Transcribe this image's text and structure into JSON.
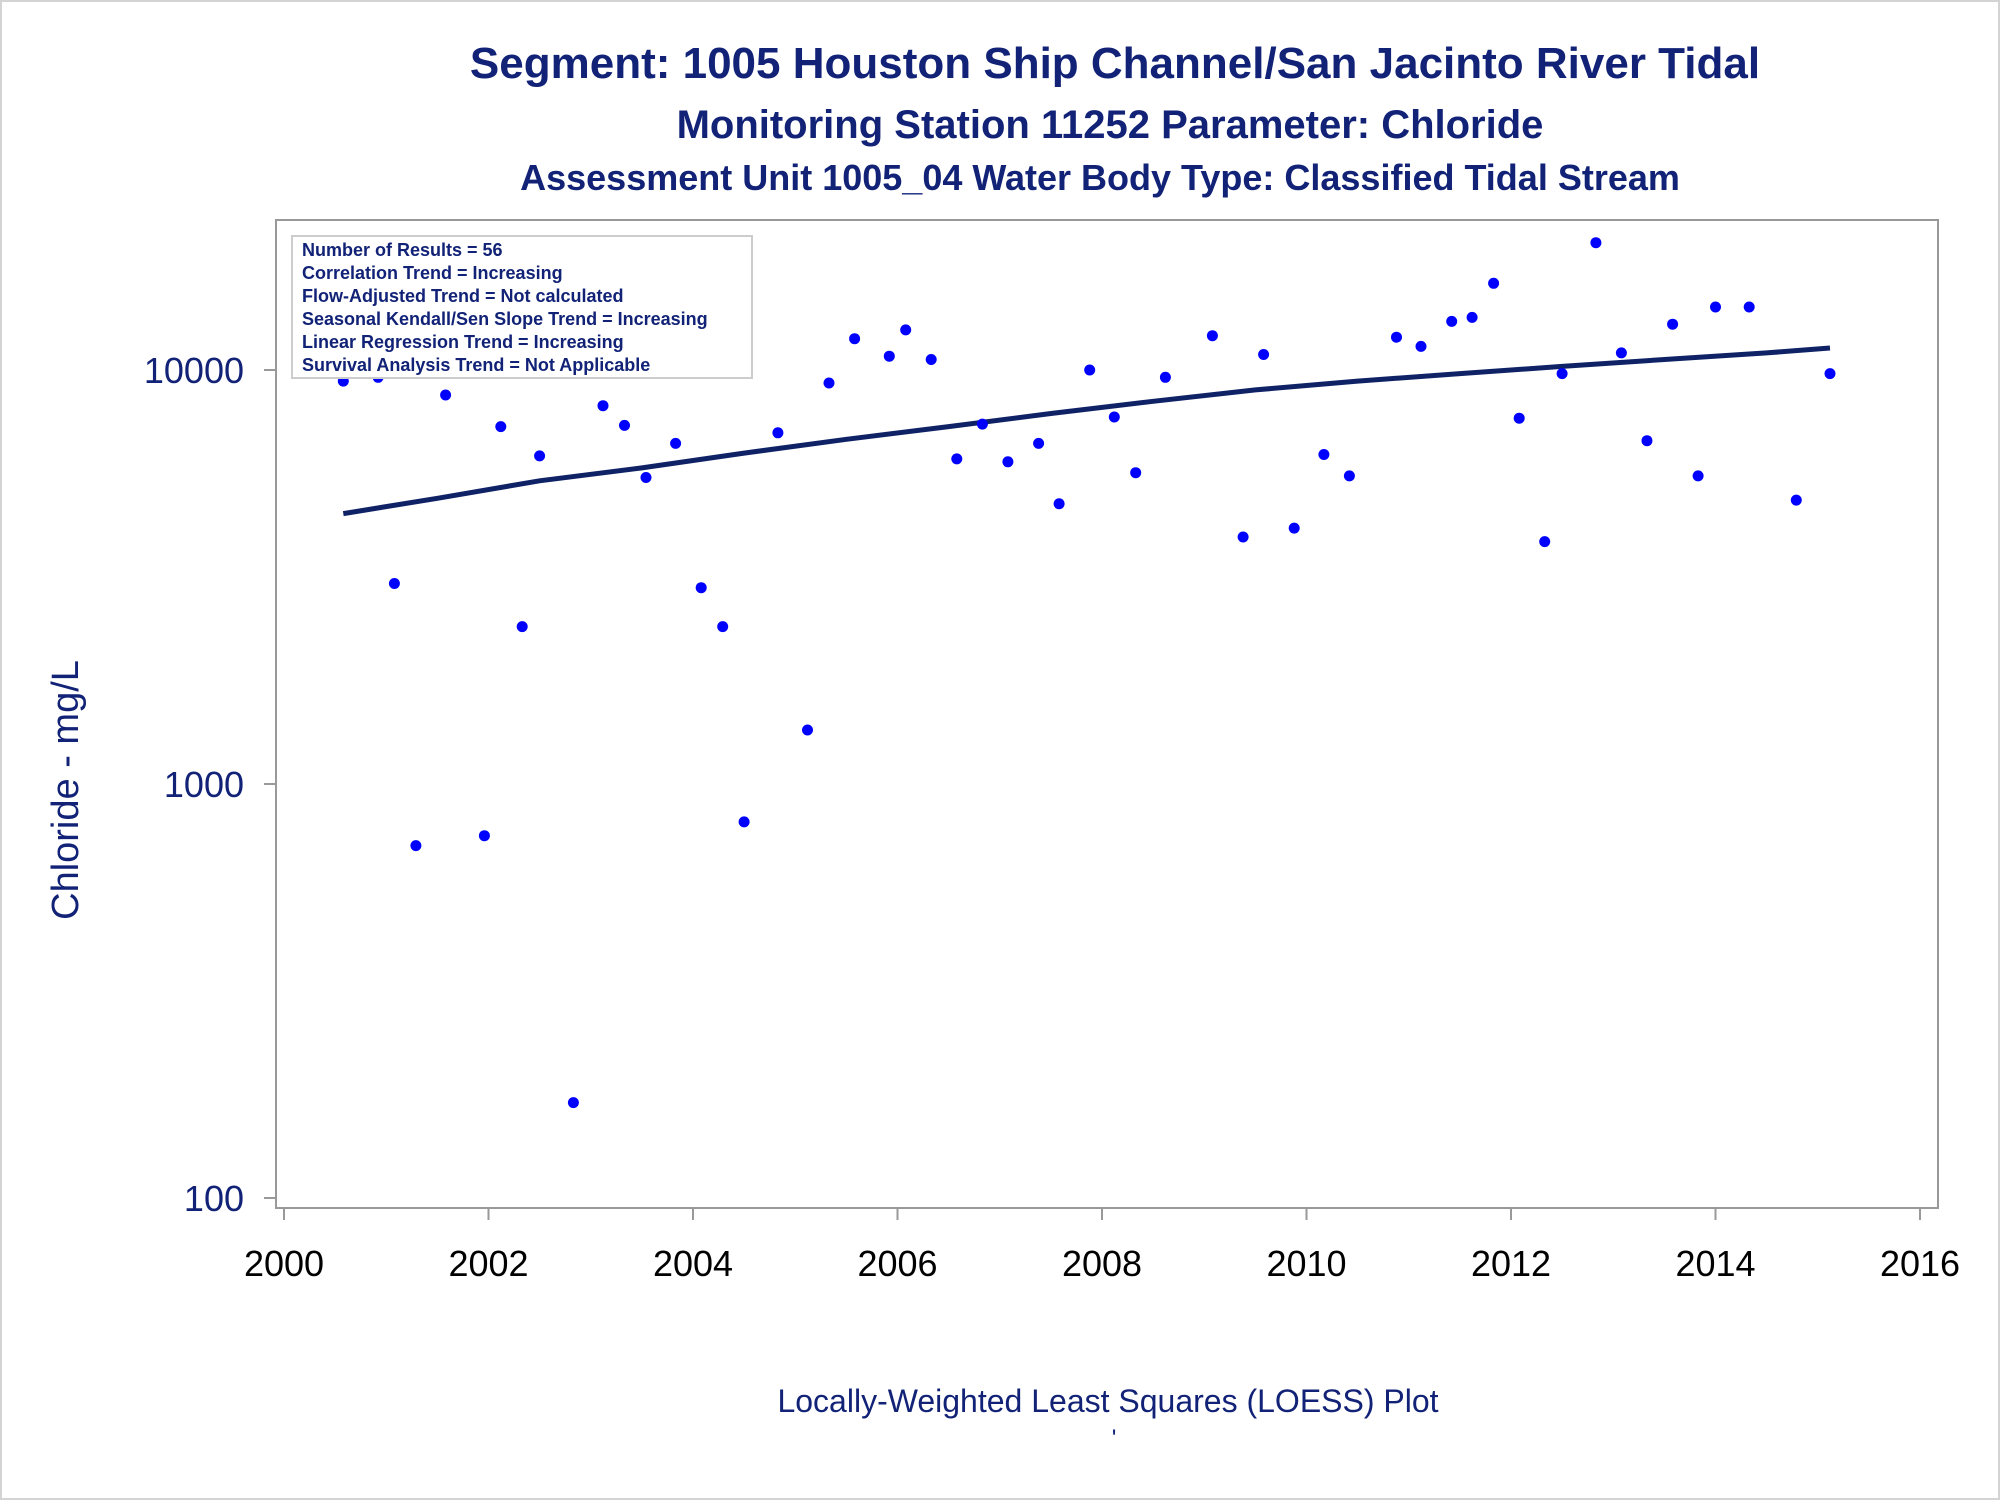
{
  "chart_data": {
    "type": "scatter",
    "title": "Segment: 1005  Houston Ship Channel/San Jacinto River Tidal",
    "subtitle1": "Monitoring Station 11252 Parameter: Chloride",
    "subtitle2": "Assessment Unit 1005_04   Water Body Type: Classified Tidal Stream",
    "xlabel": "Locally-Weighted Least Squares (LOESS) Plot",
    "ylabel": "Chloride - mg/L",
    "footnote": "'",
    "x_scale": "linear",
    "y_scale": "log",
    "xlim": [
      2000,
      2016
    ],
    "ylim": [
      100,
      20000
    ],
    "x_ticks": [
      "2000",
      "2002",
      "2004",
      "2006",
      "2008",
      "2010",
      "2012",
      "2014",
      "2016"
    ],
    "y_ticks": [
      "100",
      "1000",
      "10000"
    ],
    "grid": false,
    "stats_box": {
      "placement": "top-left",
      "lines": [
        "Number of Results = 56",
        "Correlation Trend = Increasing",
        "Flow-Adjusted Trend = Not calculated",
        "Seasonal Kendall/Sen Slope Trend = Increasing",
        "Linear Regression Trend = Increasing",
        "Survival Analysis Trend = Not Applicable"
      ]
    },
    "point_color": "#0000ff",
    "line_color": "#0f2266",
    "points": [
      {
        "x": 2000.58,
        "y": 9400
      },
      {
        "x": 2000.92,
        "y": 9600
      },
      {
        "x": 2001.08,
        "y": 3050
      },
      {
        "x": 2001.29,
        "y": 710
      },
      {
        "x": 2001.58,
        "y": 8700
      },
      {
        "x": 2001.96,
        "y": 750
      },
      {
        "x": 2002.12,
        "y": 7300
      },
      {
        "x": 2002.33,
        "y": 2400
      },
      {
        "x": 2002.5,
        "y": 6200
      },
      {
        "x": 2002.83,
        "y": 170
      },
      {
        "x": 2003.12,
        "y": 8200
      },
      {
        "x": 2003.33,
        "y": 7350
      },
      {
        "x": 2003.54,
        "y": 5500
      },
      {
        "x": 2003.83,
        "y": 6650
      },
      {
        "x": 2004.08,
        "y": 2980
      },
      {
        "x": 2004.29,
        "y": 2400
      },
      {
        "x": 2004.5,
        "y": 810
      },
      {
        "x": 2004.83,
        "y": 7050
      },
      {
        "x": 2005.12,
        "y": 1350
      },
      {
        "x": 2005.33,
        "y": 9300
      },
      {
        "x": 2005.58,
        "y": 11900
      },
      {
        "x": 2005.92,
        "y": 10800
      },
      {
        "x": 2006.08,
        "y": 12500
      },
      {
        "x": 2006.33,
        "y": 10600
      },
      {
        "x": 2006.58,
        "y": 6100
      },
      {
        "x": 2006.83,
        "y": 7400
      },
      {
        "x": 2007.08,
        "y": 6000
      },
      {
        "x": 2007.38,
        "y": 6650
      },
      {
        "x": 2007.58,
        "y": 4750
      },
      {
        "x": 2007.88,
        "y": 10000
      },
      {
        "x": 2008.12,
        "y": 7700
      },
      {
        "x": 2008.33,
        "y": 5650
      },
      {
        "x": 2008.62,
        "y": 9600
      },
      {
        "x": 2009.08,
        "y": 12100
      },
      {
        "x": 2009.38,
        "y": 3950
      },
      {
        "x": 2009.58,
        "y": 10900
      },
      {
        "x": 2009.88,
        "y": 4150
      },
      {
        "x": 2010.17,
        "y": 6250
      },
      {
        "x": 2010.42,
        "y": 5550
      },
      {
        "x": 2010.88,
        "y": 12000
      },
      {
        "x": 2011.12,
        "y": 11400
      },
      {
        "x": 2011.42,
        "y": 13100
      },
      {
        "x": 2011.62,
        "y": 13400
      },
      {
        "x": 2011.83,
        "y": 16200
      },
      {
        "x": 2012.08,
        "y": 7650
      },
      {
        "x": 2012.33,
        "y": 3850
      },
      {
        "x": 2012.5,
        "y": 9800
      },
      {
        "x": 2012.83,
        "y": 20300
      },
      {
        "x": 2013.08,
        "y": 11000
      },
      {
        "x": 2013.33,
        "y": 6750
      },
      {
        "x": 2013.58,
        "y": 12900
      },
      {
        "x": 2013.83,
        "y": 5550
      },
      {
        "x": 2014.0,
        "y": 14200
      },
      {
        "x": 2014.33,
        "y": 14200
      },
      {
        "x": 2014.79,
        "y": 4850
      },
      {
        "x": 2015.12,
        "y": 9800
      }
    ],
    "loess_line": [
      {
        "x": 2000.58,
        "y": 4500
      },
      {
        "x": 2001.5,
        "y": 4900
      },
      {
        "x": 2002.5,
        "y": 5400
      },
      {
        "x": 2003.5,
        "y": 5800
      },
      {
        "x": 2004.5,
        "y": 6300
      },
      {
        "x": 2005.5,
        "y": 6800
      },
      {
        "x": 2006.5,
        "y": 7300
      },
      {
        "x": 2007.5,
        "y": 7850
      },
      {
        "x": 2008.5,
        "y": 8400
      },
      {
        "x": 2009.5,
        "y": 8950
      },
      {
        "x": 2010.5,
        "y": 9400
      },
      {
        "x": 2011.5,
        "y": 9800
      },
      {
        "x": 2012.5,
        "y": 10200
      },
      {
        "x": 2013.5,
        "y": 10600
      },
      {
        "x": 2014.5,
        "y": 11000
      },
      {
        "x": 2015.12,
        "y": 11300
      }
    ]
  }
}
